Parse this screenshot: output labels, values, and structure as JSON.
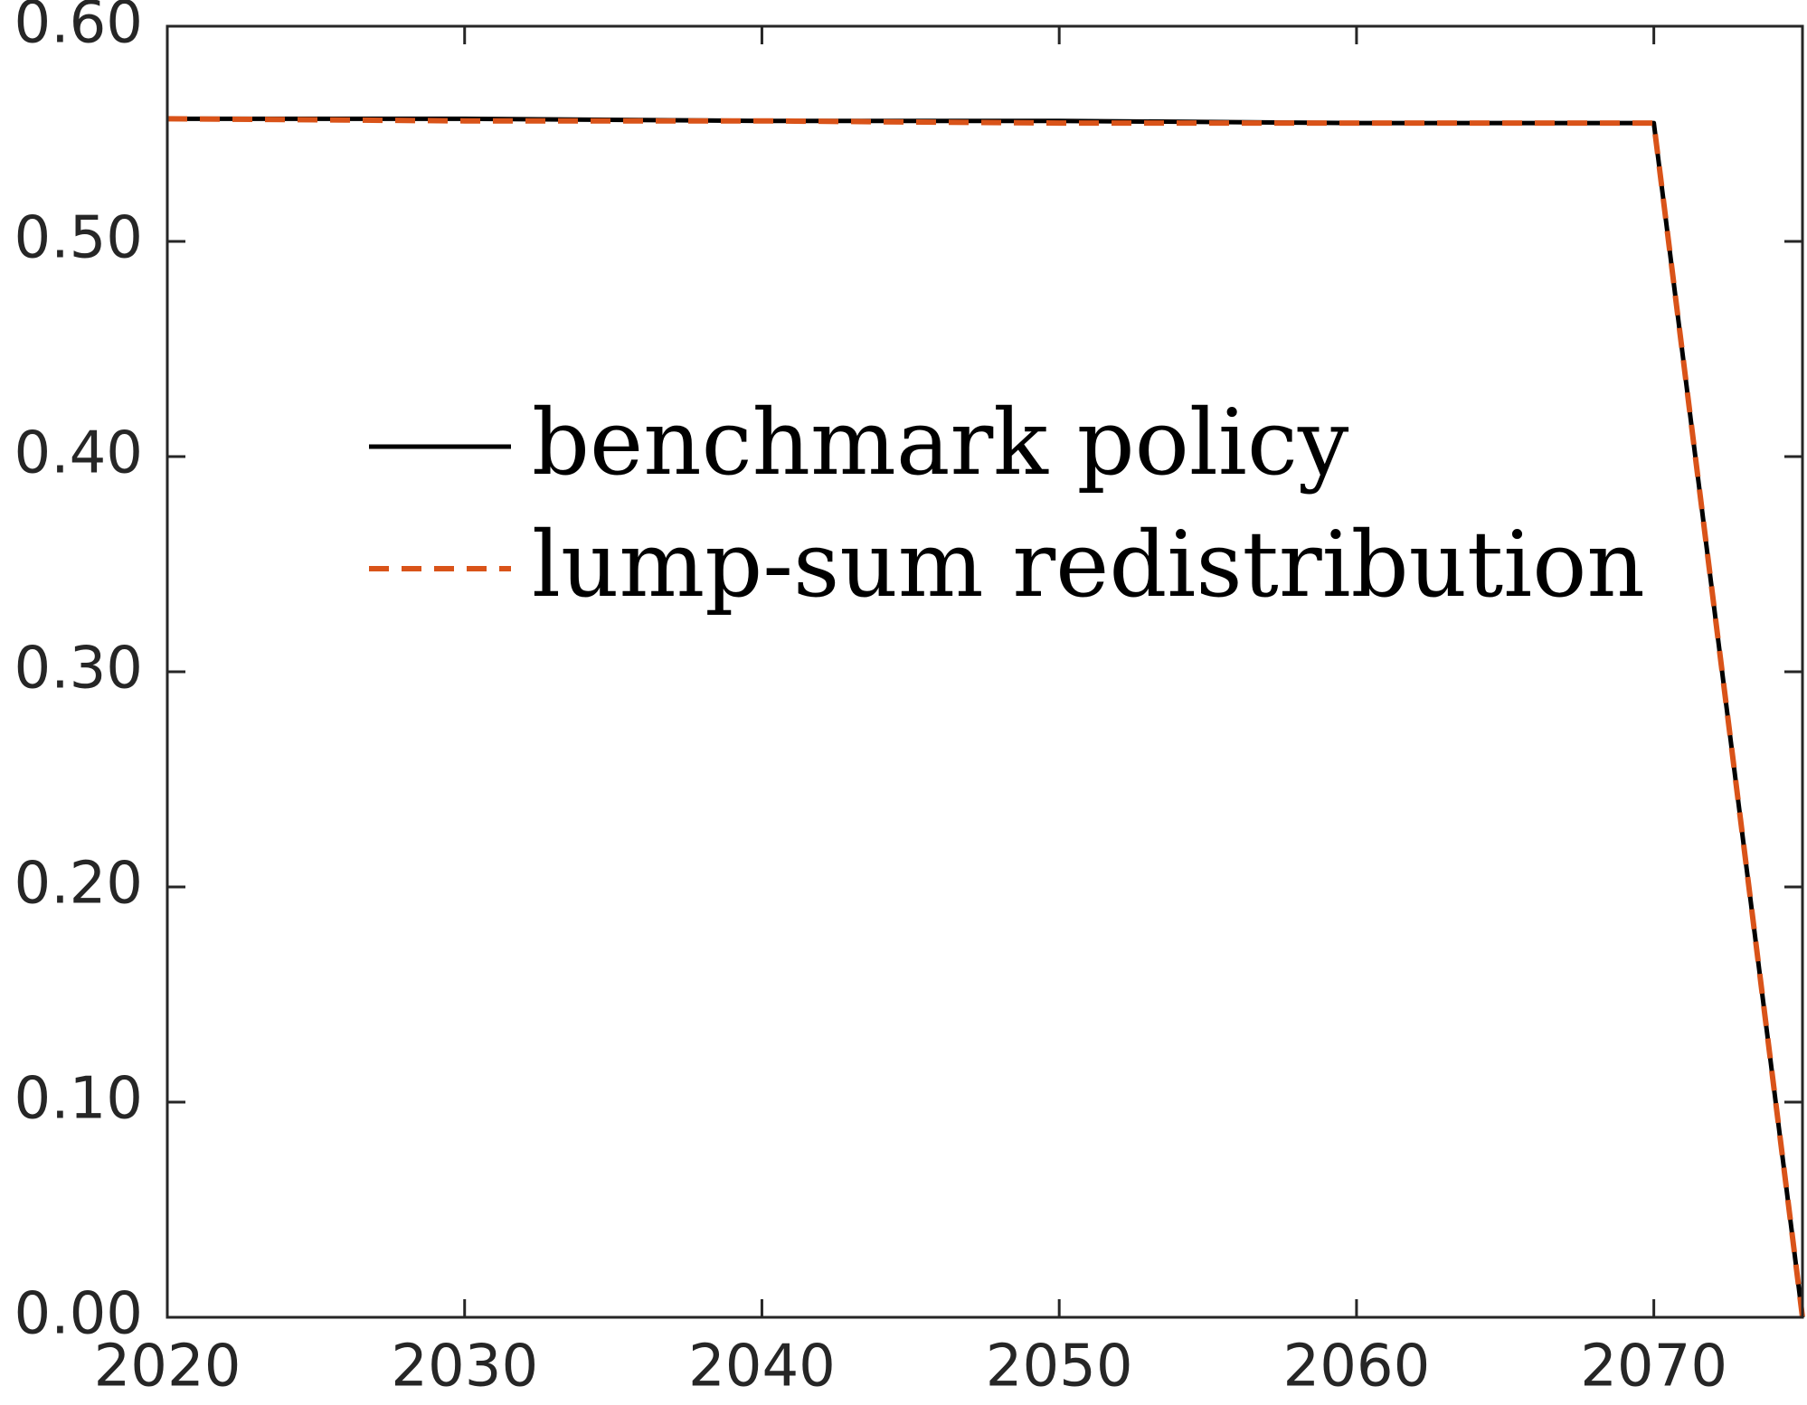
{
  "chart_data": {
    "type": "line",
    "title": "",
    "xlabel": "",
    "ylabel": "",
    "xlim": [
      2020,
      2075
    ],
    "ylim": [
      0,
      0.6
    ],
    "xticks": [
      2020,
      2030,
      2040,
      2050,
      2060,
      2070
    ],
    "xtick_labels": [
      "2020",
      "2030",
      "2040",
      "2050",
      "2060",
      "2070"
    ],
    "yticks": [
      0,
      0.1,
      0.2,
      0.3,
      0.4,
      0.5,
      0.6
    ],
    "ytick_labels": [
      "0.00",
      "0.10",
      "0.20",
      "0.30",
      "0.40",
      "0.50",
      "0.60"
    ],
    "grid": false,
    "legend": {
      "placement": "upper-center"
    },
    "series": [
      {
        "name": "benchmark policy",
        "color": "#000000",
        "style": "solid",
        "x": [
          2020,
          2030,
          2040,
          2050,
          2060,
          2070,
          2075
        ],
        "y": [
          0.557,
          0.557,
          0.556,
          0.556,
          0.555,
          0.555,
          0.0
        ]
      },
      {
        "name": "lump-sum redistribution",
        "color": "#D95319",
        "style": "dashed",
        "x": [
          2020,
          2030,
          2040,
          2050,
          2060,
          2070,
          2075
        ],
        "y": [
          0.557,
          0.556,
          0.556,
          0.555,
          0.555,
          0.555,
          0.0
        ]
      }
    ]
  }
}
